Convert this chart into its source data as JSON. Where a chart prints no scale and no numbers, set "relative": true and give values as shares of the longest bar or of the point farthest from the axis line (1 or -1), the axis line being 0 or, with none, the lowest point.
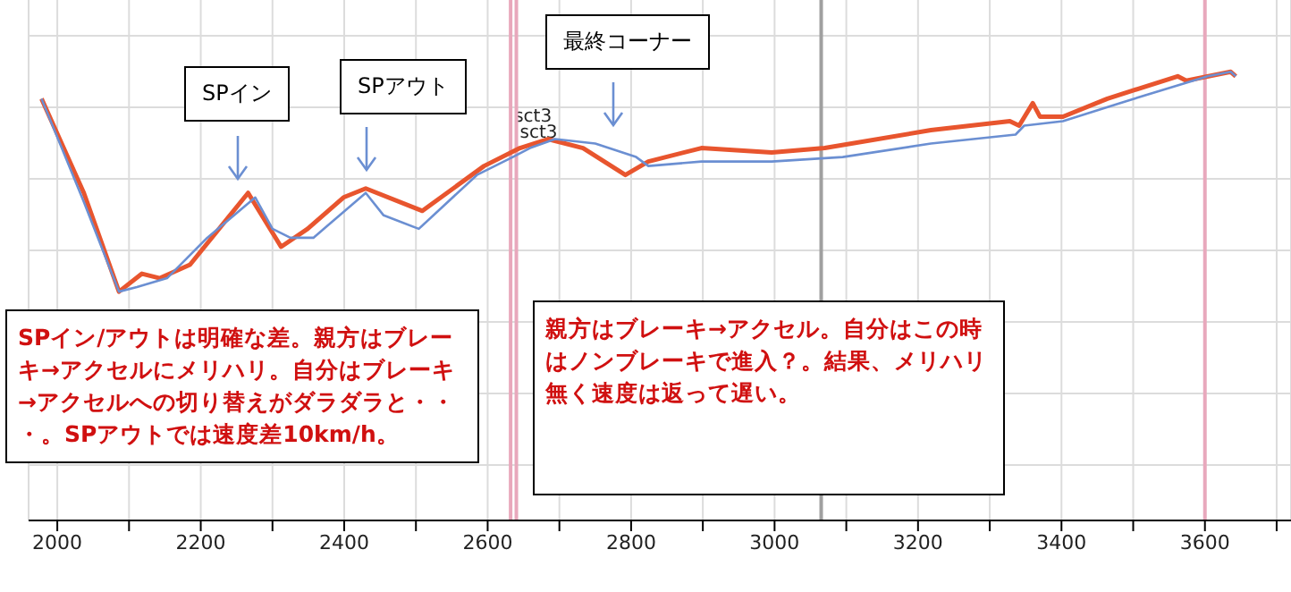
{
  "chart_data": {
    "type": "line",
    "relative": true,
    "x": [
      1978,
      2037,
      2086,
      2118,
      2143,
      2185,
      2266,
      2312,
      2349,
      2399,
      2430,
      2509,
      2595,
      2645,
      2684,
      2733,
      2792,
      2824,
      2898,
      2996,
      3070,
      3218,
      3328,
      3341,
      3360,
      3370,
      3402,
      3464,
      3562,
      3574,
      3636,
      3643
    ],
    "xlim": [
      1960,
      3720
    ],
    "xticks": [
      2000,
      {
        "value": 2100,
        "label": null
      },
      2200,
      {
        "value": 2300,
        "label": null
      },
      2400,
      {
        "value": 2500,
        "label": null
      },
      2600,
      {
        "value": 2700,
        "label": null
      },
      2800,
      {
        "value": 2900,
        "label": null
      },
      3000,
      {
        "value": 3100,
        "label": null
      },
      3200,
      {
        "value": 3300,
        "label": null
      },
      3400,
      {
        "value": 3500,
        "label": null
      },
      3600,
      {
        "value": 3700,
        "label": null
      }
    ],
    "grid": true,
    "series": [
      {
        "color": "#e8552e",
        "values": [
          0.94,
          0.73,
          0.51,
          0.55,
          0.54,
          0.57,
          0.73,
          0.61,
          0.65,
          0.72,
          0.74,
          0.69,
          0.79,
          0.83,
          0.85,
          0.83,
          0.77,
          0.8,
          0.83,
          0.82,
          0.83,
          0.87,
          0.89,
          0.88,
          0.93,
          0.9,
          0.9,
          0.94,
          0.99,
          0.98,
          1.0,
          0.99
        ]
      },
      {
        "color": "#6b8fd2",
        "x": [
          1978,
          2037,
          2086,
          2111,
          2153,
          2209,
          2276,
          2300,
          2325,
          2357,
          2430,
          2455,
          2504,
          2585,
          2635,
          2659,
          2694,
          2750,
          2807,
          2824,
          2898,
          2996,
          3095,
          3218,
          3336,
          3348,
          3402,
          3481,
          3604,
          3636,
          3643
        ],
        "values": [
          0.94,
          0.71,
          0.51,
          0.52,
          0.54,
          0.63,
          0.72,
          0.65,
          0.63,
          0.63,
          0.73,
          0.68,
          0.65,
          0.77,
          0.81,
          0.83,
          0.85,
          0.84,
          0.81,
          0.79,
          0.8,
          0.8,
          0.81,
          0.84,
          0.86,
          0.88,
          0.89,
          0.93,
          0.99,
          1.0,
          0.99
        ]
      }
    ],
    "ref_lines": [
      {
        "axis": "x",
        "value": 2632,
        "label": "sct3",
        "color": "#e8a8bc"
      },
      {
        "axis": "x",
        "value": 2640,
        "label": "sct3",
        "color": "#e8a8bc"
      },
      {
        "axis": "x",
        "value": 3065,
        "color": "#a0a0a0"
      },
      {
        "axis": "x",
        "value": 3600,
        "color": "#e8a8bc"
      }
    ],
    "annotations": [
      "SPイン",
      "SPアウト",
      "最終コーナー",
      "SPイン/アウトは明確な差。親方はブレーキ→アクセルにメリハリ。自分はブレーキ→アクセルへの切り替えがダラダラと・・・。SPアウトでは速度差10km/h。",
      "親方はブレーキ→アクセル。自分はこの時はノンブレーキで進入？。結果、メリハリ無く速度は返って遅い。"
    ]
  }
}
